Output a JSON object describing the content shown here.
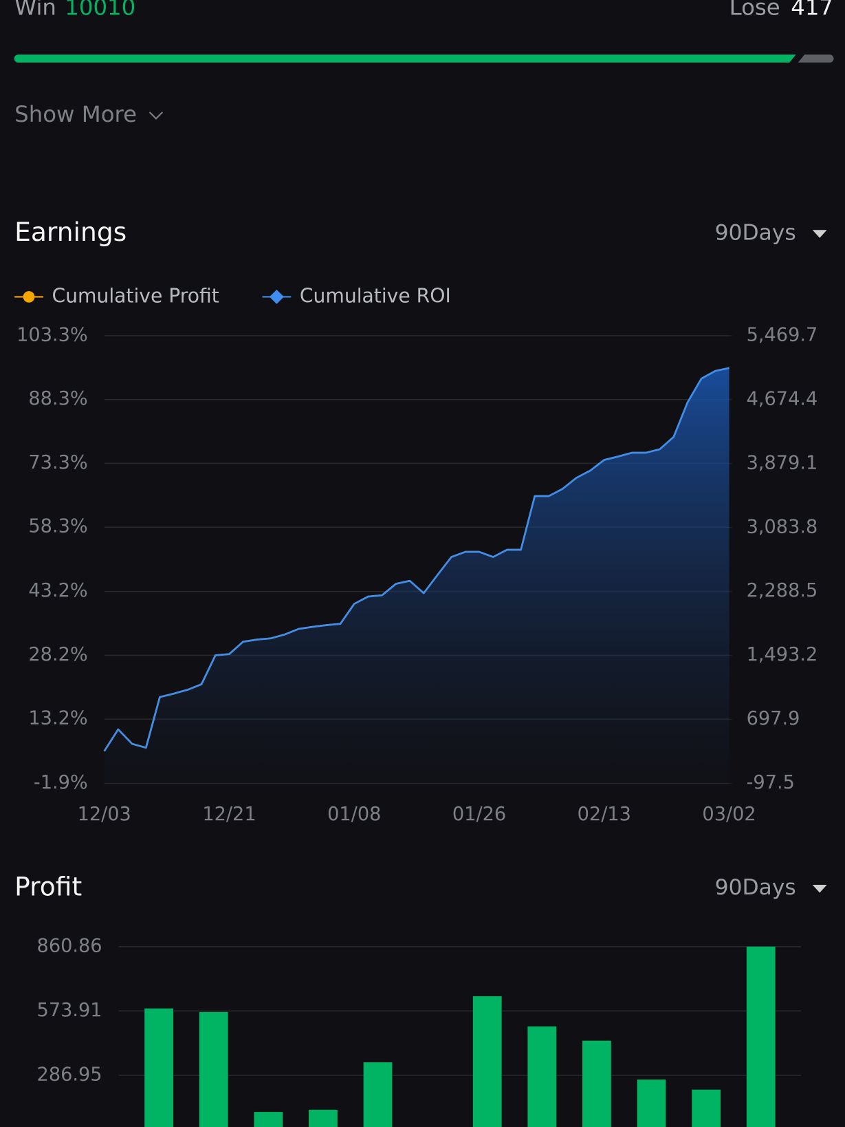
{
  "stats": {
    "win_label": "Win",
    "win": 10010,
    "lose_label": "Lose",
    "lose": 417
  },
  "show_more": "Show More",
  "earnings": {
    "title": "Earnings",
    "period": "90Days"
  },
  "profit": {
    "title": "Profit",
    "period": "90Days"
  },
  "chart_data": [
    {
      "type": "line",
      "categories": [
        "12/03",
        null,
        null,
        null,
        null,
        null,
        null,
        null,
        null,
        "12/21",
        null,
        null,
        null,
        null,
        null,
        null,
        null,
        null,
        "01/08",
        null,
        null,
        null,
        null,
        null,
        null,
        null,
        null,
        "01/26",
        null,
        null,
        null,
        null,
        null,
        null,
        null,
        null,
        "02/13",
        null,
        null,
        null,
        null,
        null,
        null,
        null,
        null,
        "03/02"
      ],
      "series": [
        {
          "name": "Cumulative Profit",
          "color": "#f7a600",
          "axis": "y2",
          "values": [
            304.7,
            574.6,
            394.7,
            347.0,
            976.8,
            1019.1,
            1066.7,
            1135.5,
            1495.4,
            1511.3,
            1664.7,
            1691.2,
            1707.1,
            1754.7,
            1823.5,
            1850.0,
            1871.1,
            1887.0,
            2135.7,
            2225.7,
            2241.6,
            2384.5,
            2421.5,
            2268.0,
            2495.6,
            2717.8,
            2781.3,
            2781.3,
            2717.8,
            2807.8,
            2807.8,
            3474.6,
            3474.6,
            3564.6,
            3702.2,
            3792.1,
            3924.4,
            3966.8,
            4014.4,
            4014.4,
            4056.7,
            4210.2,
            4638.8,
            4935.2,
            5030.5,
            5067.5
          ]
        },
        {
          "name": "Cumulative ROI",
          "color": "#3d8ef0",
          "values": [
            5.7,
            10.8,
            7.4,
            6.5,
            18.4,
            19.2,
            20.1,
            21.4,
            28.2,
            28.5,
            31.4,
            31.9,
            32.2,
            33.1,
            34.4,
            34.9,
            35.3,
            35.6,
            40.3,
            42.0,
            42.3,
            45.0,
            45.7,
            42.8,
            47.1,
            51.3,
            52.5,
            52.5,
            51.3,
            53.0,
            53.0,
            65.6,
            65.6,
            67.3,
            69.9,
            71.6,
            74.1,
            74.9,
            75.8,
            75.8,
            76.6,
            79.5,
            87.6,
            93.2,
            95.0,
            95.7
          ]
        }
      ],
      "ylim": [
        -1.9,
        103.3
      ],
      "yticks": [
        {
          "value": 103.3,
          "label": "103.3%"
        },
        {
          "value": 88.3,
          "label": "88.3%"
        },
        {
          "value": 73.3,
          "label": "73.3%"
        },
        {
          "value": 58.3,
          "label": "58.3%"
        },
        {
          "value": 43.2,
          "label": "43.2%"
        },
        {
          "value": 28.2,
          "label": "28.2%"
        },
        {
          "value": 13.2,
          "label": "13.2%"
        },
        {
          "value": -1.9,
          "label": "-1.9%"
        }
      ],
      "y2lim": [
        -97.5,
        5469.7
      ],
      "y2ticks": [
        {
          "value": 5469.7,
          "label": "5,469.7"
        },
        {
          "value": 4674.4,
          "label": "4,674.4"
        },
        {
          "value": 3879.1,
          "label": "3,879.1"
        },
        {
          "value": 3083.8,
          "label": "3,083.8"
        },
        {
          "value": 2288.5,
          "label": "2,288.5"
        },
        {
          "value": 1493.2,
          "label": "1,493.2"
        },
        697.9,
        -97.5
      ],
      "grid": true
    },
    {
      "type": "bar",
      "color": "#00b464",
      "values": [
        585.1,
        569.1,
        123.4,
        133.1,
        344.7,
        0,
        639.6,
        505.0,
        440.9,
        267.7,
        222.8,
        860.86
      ],
      "ylim": [
        0,
        860.86
      ],
      "yticks": [
        860.86,
        573.91,
        286.95
      ],
      "grid": true
    }
  ]
}
